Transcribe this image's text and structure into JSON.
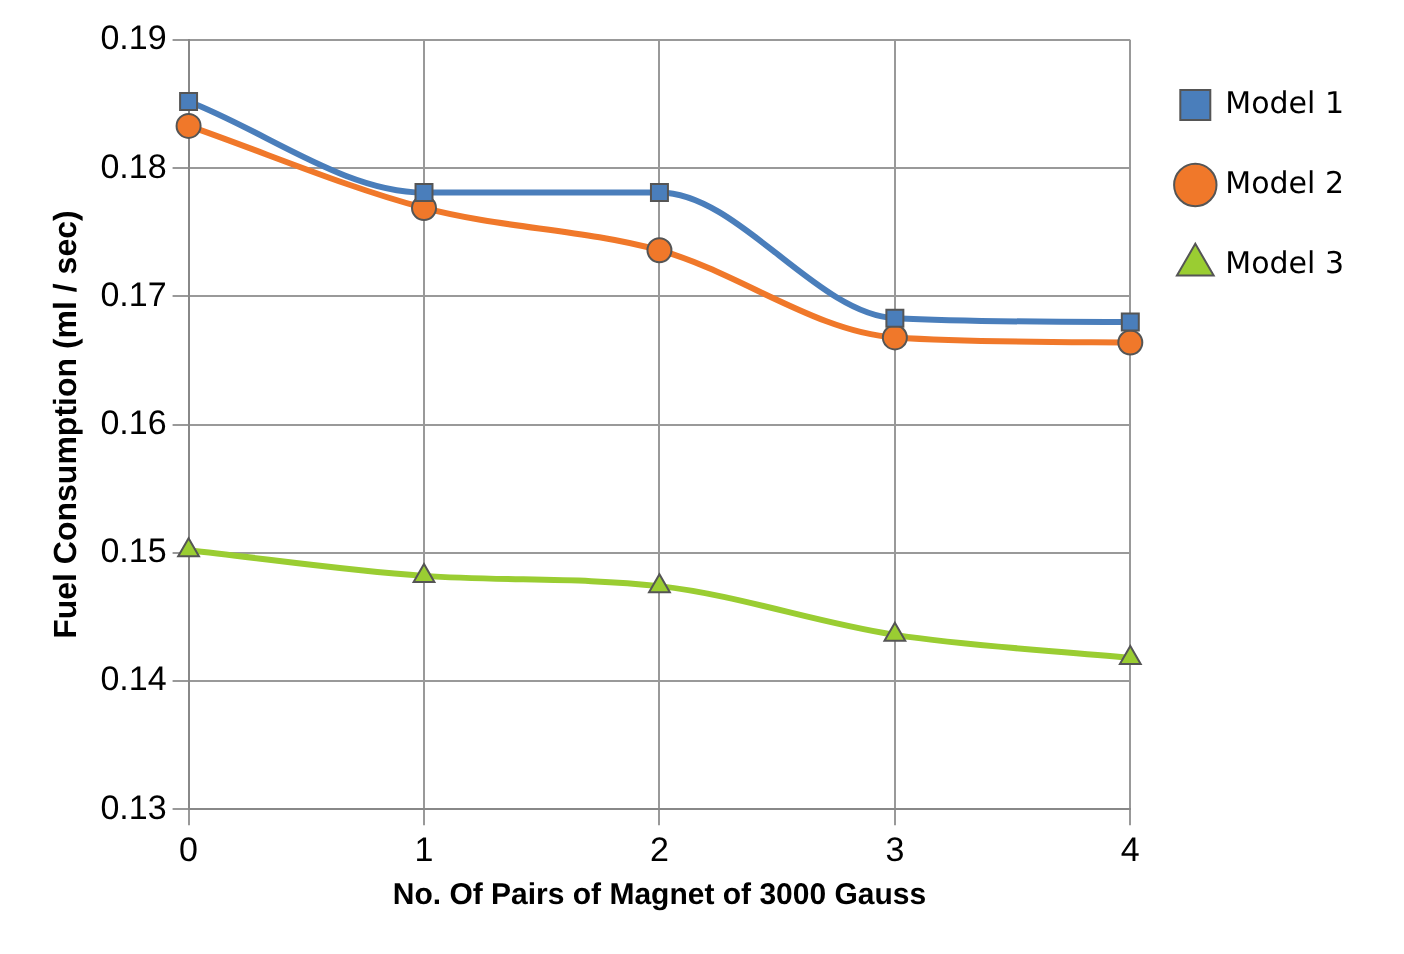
{
  "chart_data": {
    "type": "line",
    "xlabel": "No. Of Pairs of Magnet of 3000 Gauss",
    "ylabel": "Fuel Consumption (ml / sec)",
    "categories": [
      "0",
      "1",
      "2",
      "3",
      "4"
    ],
    "series": [
      {
        "name": "Model 1",
        "color": "#4a7ebb",
        "marker": "square",
        "values": [
          0.1852,
          0.1781,
          0.1781,
          0.1683,
          0.168
        ]
      },
      {
        "name": "Model 2",
        "color": "#f0782a",
        "marker": "circle",
        "values": [
          0.1833,
          0.1769,
          0.1736,
          0.1668,
          0.1664
        ]
      },
      {
        "name": "Model 3",
        "color": "#9acd32",
        "marker": "triangle",
        "values": [
          0.1502,
          0.1482,
          0.1474,
          0.1436,
          0.1418
        ]
      }
    ],
    "ylim": [
      0.13,
      0.19
    ],
    "yticks": [
      0.13,
      0.14,
      0.15,
      0.16,
      0.17,
      0.18,
      0.19
    ],
    "grid": true,
    "legend": "right"
  }
}
